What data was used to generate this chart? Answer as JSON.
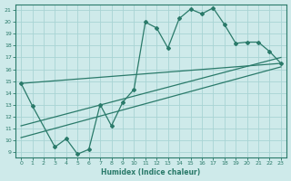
{
  "xlabel": "Humidex (Indice chaleur)",
  "bg_color": "#ceeaea",
  "line_color": "#2a7a6a",
  "grid_color": "#a8d4d4",
  "spine_color": "#2a7a6a",
  "xlim": [
    -0.5,
    23.5
  ],
  "ylim": [
    8.5,
    21.5
  ],
  "xticks": [
    0,
    1,
    2,
    3,
    4,
    5,
    6,
    7,
    8,
    9,
    10,
    11,
    12,
    13,
    14,
    15,
    16,
    17,
    18,
    19,
    20,
    21,
    22,
    23
  ],
  "yticks": [
    9,
    10,
    11,
    12,
    13,
    14,
    15,
    16,
    17,
    18,
    19,
    20,
    21
  ],
  "main_line_x": [
    0,
    1,
    3,
    4,
    5,
    6,
    7,
    8,
    9,
    10,
    11,
    12,
    13,
    14,
    15,
    16,
    17,
    18,
    19,
    20,
    21,
    22,
    23
  ],
  "main_line_y": [
    14.8,
    12.9,
    9.4,
    10.1,
    8.8,
    9.2,
    13.0,
    11.2,
    13.2,
    14.3,
    20.0,
    19.5,
    17.8,
    20.3,
    21.1,
    20.7,
    21.2,
    19.8,
    18.2,
    18.3,
    18.3,
    17.5,
    16.5
  ],
  "line1_x": [
    0,
    23
  ],
  "line1_y": [
    14.8,
    16.5
  ],
  "line2_x": [
    0,
    23
  ],
  "line2_y": [
    11.2,
    17.0
  ],
  "line3_x": [
    0,
    23
  ],
  "line3_y": [
    10.2,
    16.2
  ]
}
